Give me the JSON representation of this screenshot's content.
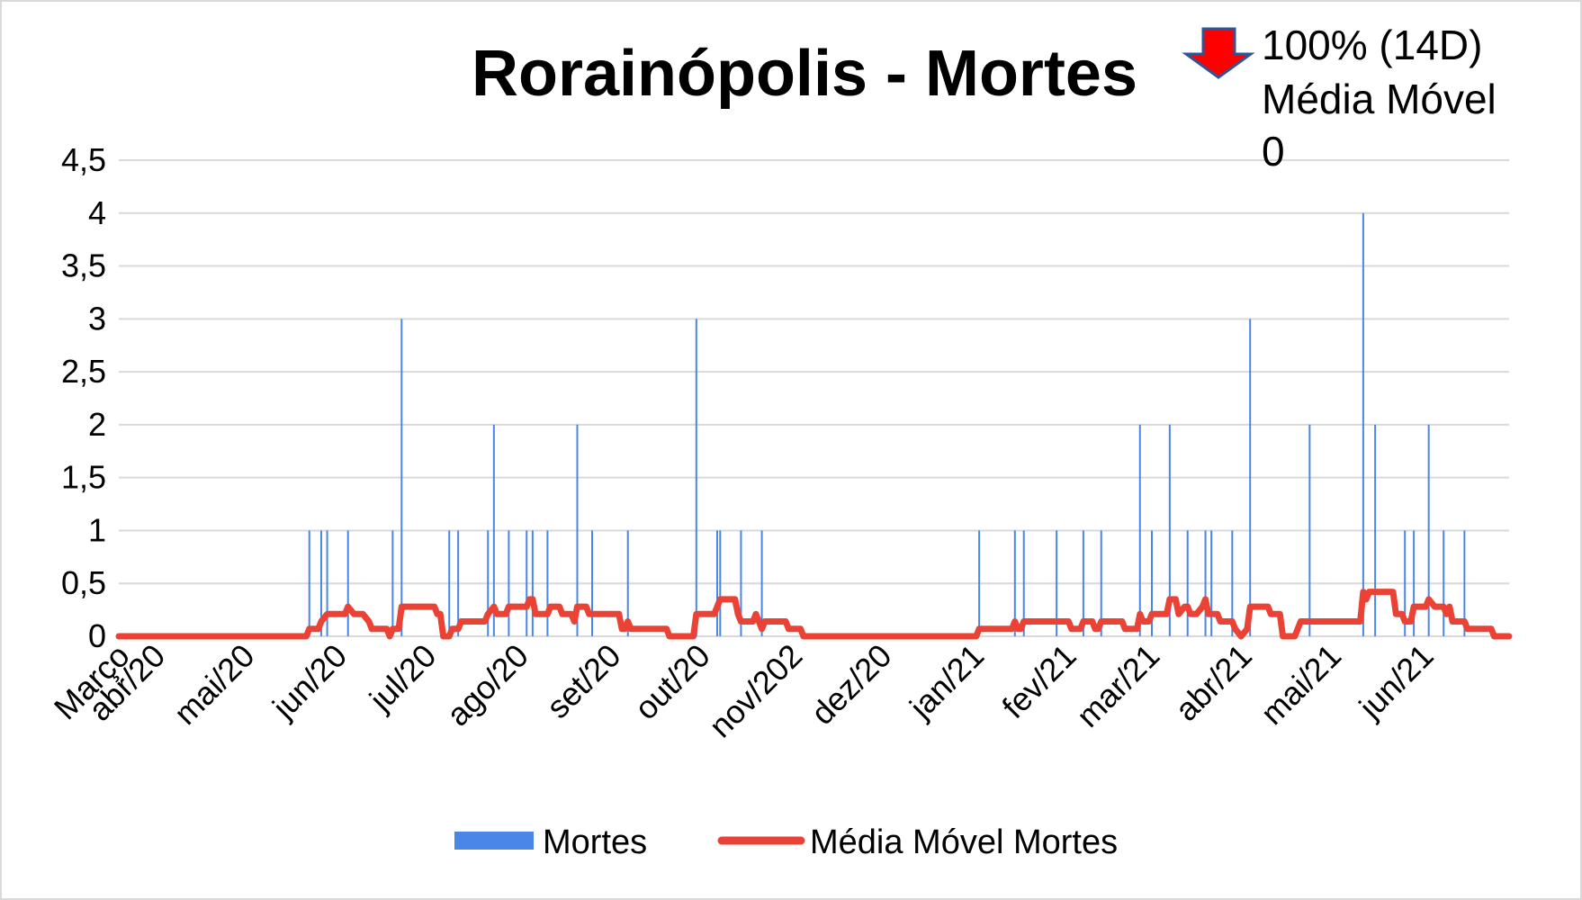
{
  "chart_data": {
    "type": "bar",
    "title": "Rorainópolis - Mortes",
    "annotation": {
      "lines": [
        "100% (14D)",
        "Média Móvel",
        "0"
      ],
      "arrow_icon": "down-arrow-icon",
      "arrow_fill": "#ff0000",
      "arrow_stroke": "#2f5597"
    },
    "x_axis": {
      "start_date": "2020-03-20",
      "end_date": "2021-06-30",
      "tick_labels": [
        "Março",
        "abr/20",
        "mai/20",
        "jun/20",
        "jul/20",
        "ago/20",
        "set/20",
        "out/20",
        "nov/202",
        "dez/20",
        "jan/21",
        "fev/21",
        "mar/21",
        "abr/21",
        "mai/21",
        "jun/21"
      ],
      "tick_dates": [
        "2020-03-20",
        "2020-04-01",
        "2020-05-01",
        "2020-06-01",
        "2020-07-01",
        "2020-08-01",
        "2020-09-01",
        "2020-10-01",
        "2020-11-01",
        "2020-12-01",
        "2021-01-01",
        "2021-02-01",
        "2021-03-01",
        "2021-04-01",
        "2021-05-01",
        "2021-06-01"
      ]
    },
    "y_axis": {
      "min": 0,
      "max": 4.5,
      "tick_labels": [
        "0",
        "0,5",
        "1",
        "1,5",
        "2",
        "2,5",
        "3",
        "3,5",
        "4",
        "4,5"
      ],
      "tick_values": [
        0,
        0.5,
        1,
        1.5,
        2,
        2.5,
        3,
        3.5,
        4,
        4.5
      ]
    },
    "grid": true,
    "legend_position": "bottom",
    "series": [
      {
        "name": "Mortes",
        "kind": "bar",
        "color": "#4a86e8",
        "points": [
          [
            "2020-05-23",
            1
          ],
          [
            "2020-05-27",
            1
          ],
          [
            "2020-05-29",
            1
          ],
          [
            "2020-06-05",
            1
          ],
          [
            "2020-06-20",
            1
          ],
          [
            "2020-06-23",
            3
          ],
          [
            "2020-07-09",
            1
          ],
          [
            "2020-07-12",
            1
          ],
          [
            "2020-07-22",
            1
          ],
          [
            "2020-07-24",
            2
          ],
          [
            "2020-07-29",
            1
          ],
          [
            "2020-08-04",
            1
          ],
          [
            "2020-08-06",
            1
          ],
          [
            "2020-08-11",
            1
          ],
          [
            "2020-08-21",
            2
          ],
          [
            "2020-08-26",
            1
          ],
          [
            "2020-09-07",
            1
          ],
          [
            "2020-09-30",
            3
          ],
          [
            "2020-10-07",
            1
          ],
          [
            "2020-10-08",
            1
          ],
          [
            "2020-10-15",
            1
          ],
          [
            "2020-10-22",
            1
          ],
          [
            "2021-01-03",
            1
          ],
          [
            "2021-01-15",
            1
          ],
          [
            "2021-01-18",
            1
          ],
          [
            "2021-01-29",
            1
          ],
          [
            "2021-02-07",
            1
          ],
          [
            "2021-02-13",
            1
          ],
          [
            "2021-02-26",
            2
          ],
          [
            "2021-03-02",
            1
          ],
          [
            "2021-03-08",
            2
          ],
          [
            "2021-03-14",
            1
          ],
          [
            "2021-03-20",
            1
          ],
          [
            "2021-03-22",
            1
          ],
          [
            "2021-03-29",
            1
          ],
          [
            "2021-04-04",
            3
          ],
          [
            "2021-04-24",
            2
          ],
          [
            "2021-05-12",
            4
          ],
          [
            "2021-05-16",
            2
          ],
          [
            "2021-05-26",
            1
          ],
          [
            "2021-05-29",
            1
          ],
          [
            "2021-06-03",
            2
          ],
          [
            "2021-06-08",
            1
          ],
          [
            "2021-06-15",
            1
          ]
        ]
      },
      {
        "name": "Média Móvel Mortes",
        "kind": "line",
        "color": "#ea4335",
        "points": [
          [
            "2020-03-20",
            0
          ],
          [
            "2020-05-22",
            0
          ],
          [
            "2020-05-23",
            0.07
          ],
          [
            "2020-05-26",
            0.07
          ],
          [
            "2020-05-27",
            0.14
          ],
          [
            "2020-05-29",
            0.21
          ],
          [
            "2020-06-04",
            0.21
          ],
          [
            "2020-06-05",
            0.28
          ],
          [
            "2020-06-07",
            0.21
          ],
          [
            "2020-06-10",
            0.21
          ],
          [
            "2020-06-12",
            0.14
          ],
          [
            "2020-06-13",
            0.07
          ],
          [
            "2020-06-18",
            0.07
          ],
          [
            "2020-06-19",
            0
          ],
          [
            "2020-06-20",
            0.07
          ],
          [
            "2020-06-22",
            0.07
          ],
          [
            "2020-06-23",
            0.28
          ],
          [
            "2020-07-04",
            0.28
          ],
          [
            "2020-07-05",
            0.21
          ],
          [
            "2020-07-06",
            0.21
          ],
          [
            "2020-07-07",
            0
          ],
          [
            "2020-07-09",
            0
          ],
          [
            "2020-07-10",
            0.07
          ],
          [
            "2020-07-12",
            0.07
          ],
          [
            "2020-07-13",
            0.14
          ],
          [
            "2020-07-21",
            0.14
          ],
          [
            "2020-07-22",
            0.21
          ],
          [
            "2020-07-24",
            0.28
          ],
          [
            "2020-07-25",
            0.21
          ],
          [
            "2020-07-28",
            0.21
          ],
          [
            "2020-07-29",
            0.28
          ],
          [
            "2020-08-04",
            0.28
          ],
          [
            "2020-08-05",
            0.35
          ],
          [
            "2020-08-06",
            0.35
          ],
          [
            "2020-08-07",
            0.21
          ],
          [
            "2020-08-11",
            0.21
          ],
          [
            "2020-08-12",
            0.28
          ],
          [
            "2020-08-15",
            0.28
          ],
          [
            "2020-08-16",
            0.21
          ],
          [
            "2020-08-19",
            0.21
          ],
          [
            "2020-08-20",
            0.14
          ],
          [
            "2020-08-21",
            0.28
          ],
          [
            "2020-08-24",
            0.28
          ],
          [
            "2020-08-25",
            0.21
          ],
          [
            "2020-09-04",
            0.21
          ],
          [
            "2020-09-05",
            0.07
          ],
          [
            "2020-09-06",
            0.07
          ],
          [
            "2020-09-07",
            0.14
          ],
          [
            "2020-09-08",
            0.07
          ],
          [
            "2020-09-20",
            0.07
          ],
          [
            "2020-09-21",
            0
          ],
          [
            "2020-09-29",
            0
          ],
          [
            "2020-09-30",
            0.21
          ],
          [
            "2020-10-06",
            0.21
          ],
          [
            "2020-10-07",
            0.28
          ],
          [
            "2020-10-08",
            0.35
          ],
          [
            "2020-10-13",
            0.35
          ],
          [
            "2020-10-14",
            0.21
          ],
          [
            "2020-10-15",
            0.14
          ],
          [
            "2020-10-19",
            0.14
          ],
          [
            "2020-10-20",
            0.21
          ],
          [
            "2020-10-21",
            0.14
          ],
          [
            "2020-10-22",
            0.07
          ],
          [
            "2020-10-23",
            0.14
          ],
          [
            "2020-10-30",
            0.14
          ],
          [
            "2020-10-31",
            0.07
          ],
          [
            "2020-11-04",
            0.07
          ],
          [
            "2020-11-05",
            0
          ],
          [
            "2021-01-02",
            0
          ],
          [
            "2021-01-03",
            0.07
          ],
          [
            "2021-01-14",
            0.07
          ],
          [
            "2021-01-15",
            0.14
          ],
          [
            "2021-01-16",
            0.07
          ],
          [
            "2021-01-17",
            0.07
          ],
          [
            "2021-01-18",
            0.14
          ],
          [
            "2021-02-02",
            0.14
          ],
          [
            "2021-02-03",
            0.07
          ],
          [
            "2021-02-06",
            0.07
          ],
          [
            "2021-02-07",
            0.14
          ],
          [
            "2021-02-10",
            0.14
          ],
          [
            "2021-02-11",
            0.07
          ],
          [
            "2021-02-12",
            0.07
          ],
          [
            "2021-02-13",
            0.14
          ],
          [
            "2021-02-20",
            0.14
          ],
          [
            "2021-02-21",
            0.07
          ],
          [
            "2021-02-25",
            0.07
          ],
          [
            "2021-02-26",
            0.21
          ],
          [
            "2021-02-27",
            0.14
          ],
          [
            "2021-03-01",
            0.14
          ],
          [
            "2021-03-02",
            0.21
          ],
          [
            "2021-03-07",
            0.21
          ],
          [
            "2021-03-08",
            0.35
          ],
          [
            "2021-03-10",
            0.35
          ],
          [
            "2021-03-11",
            0.21
          ],
          [
            "2021-03-13",
            0.28
          ],
          [
            "2021-03-14",
            0.28
          ],
          [
            "2021-03-15",
            0.21
          ],
          [
            "2021-03-17",
            0.21
          ],
          [
            "2021-03-19",
            0.28
          ],
          [
            "2021-03-20",
            0.35
          ],
          [
            "2021-03-21",
            0.21
          ],
          [
            "2021-03-24",
            0.21
          ],
          [
            "2021-03-25",
            0.14
          ],
          [
            "2021-03-29",
            0.14
          ],
          [
            "2021-03-30",
            0.07
          ],
          [
            "2021-04-01",
            0
          ],
          [
            "2021-04-03",
            0.07
          ],
          [
            "2021-04-04",
            0.28
          ],
          [
            "2021-04-10",
            0.28
          ],
          [
            "2021-04-11",
            0.21
          ],
          [
            "2021-04-14",
            0.21
          ],
          [
            "2021-04-15",
            0
          ],
          [
            "2021-04-19",
            0
          ],
          [
            "2021-04-20",
            0.07
          ],
          [
            "2021-04-21",
            0.14
          ],
          [
            "2021-04-23",
            0.14
          ],
          [
            "2021-04-24",
            0.14
          ],
          [
            "2021-05-01",
            0.14
          ],
          [
            "2021-05-02",
            0.14
          ],
          [
            "2021-05-11",
            0.14
          ],
          [
            "2021-05-12",
            0.42
          ],
          [
            "2021-05-13",
            0.35
          ],
          [
            "2021-05-14",
            0.42
          ],
          [
            "2021-05-22",
            0.42
          ],
          [
            "2021-05-23",
            0.21
          ],
          [
            "2021-05-25",
            0.21
          ],
          [
            "2021-05-26",
            0.14
          ],
          [
            "2021-05-28",
            0.14
          ],
          [
            "2021-05-29",
            0.28
          ],
          [
            "2021-06-01",
            0.28
          ],
          [
            "2021-06-02",
            0.28
          ],
          [
            "2021-06-03",
            0.35
          ],
          [
            "2021-06-05",
            0.28
          ],
          [
            "2021-06-08",
            0.28
          ],
          [
            "2021-06-09",
            0.21
          ],
          [
            "2021-06-10",
            0.28
          ],
          [
            "2021-06-11",
            0.14
          ],
          [
            "2021-06-15",
            0.14
          ],
          [
            "2021-06-16",
            0.07
          ],
          [
            "2021-06-24",
            0.07
          ],
          [
            "2021-06-25",
            0
          ],
          [
            "2021-06-30",
            0
          ]
        ]
      }
    ]
  }
}
